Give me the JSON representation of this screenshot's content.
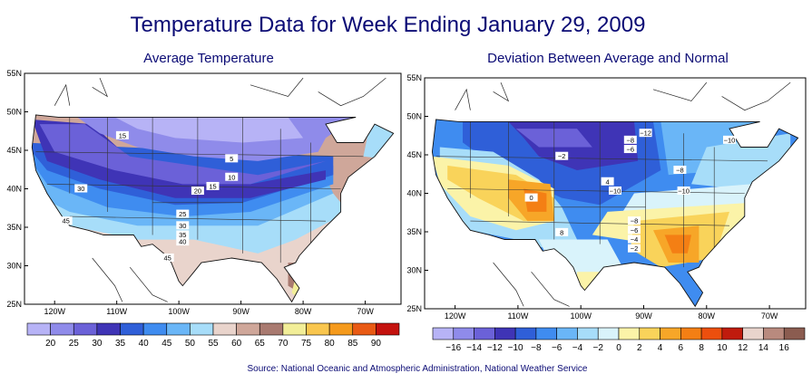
{
  "title": "Temperature Data for Week Ending January 29, 2009",
  "source": "Source:  National Oceanic and Atmospheric Administration, National Weather Service",
  "maps": [
    {
      "subtitle": "Average Temperature",
      "lat_labels": [
        "55N",
        "50N",
        "45N",
        "40N",
        "35N",
        "30N",
        "25N"
      ],
      "lon_labels": [
        "120W",
        "110W",
        "100W",
        "90W",
        "80W",
        "70W"
      ],
      "colorbar": {
        "labels": [
          "20",
          "25",
          "30",
          "35",
          "40",
          "45",
          "50",
          "55",
          "60",
          "65",
          "70",
          "75",
          "80",
          "85",
          "90"
        ],
        "colors": [
          "#b7b3f6",
          "#8f8bea",
          "#6b61d8",
          "#3f34b6",
          "#2f5fd8",
          "#3f8cf0",
          "#6ab6f7",
          "#a7ddf9",
          "#e9d4cc",
          "#cfa79a",
          "#a97a70",
          "#f2ee98",
          "#f9c64e",
          "#f59a1c",
          "#e95a14",
          "#c4120e"
        ]
      },
      "contour_labels": [
        "15",
        "5",
        "10",
        "15",
        "20",
        "30",
        "25",
        "30",
        "35",
        "40",
        "45",
        "45"
      ]
    },
    {
      "subtitle": "Deviation Between Average and Normal",
      "lat_labels": [
        "55N",
        "50N",
        "45N",
        "40N",
        "35N",
        "30N",
        "25N"
      ],
      "lon_labels": [
        "120W",
        "110W",
        "100W",
        "90W",
        "80W",
        "70W"
      ],
      "colorbar": {
        "labels": [
          "−16",
          "−14",
          "−12",
          "−10",
          "−8",
          "−6",
          "−4",
          "−2",
          "0",
          "2",
          "4",
          "6",
          "8",
          "10",
          "12",
          "14",
          "16"
        ],
        "colors": [
          "#b7b3f6",
          "#8f8bea",
          "#6b61d8",
          "#3f34b6",
          "#2f5fd8",
          "#3f8cf0",
          "#6ab6f7",
          "#a7ddf9",
          "#d9f3fb",
          "#fbf3a8",
          "#f9d35a",
          "#f7a628",
          "#f47f14",
          "#ec4f0e",
          "#c01b0d",
          "#e9d4cc",
          "#b98a7e",
          "#8b5c50"
        ]
      },
      "contour_labels": [
        "−12",
        "−8",
        "−10",
        "−6",
        "−2",
        "−8",
        "4",
        "−10",
        "−10",
        "0",
        "−8",
        "−6",
        "−4",
        "−2",
        "8"
      ]
    }
  ]
}
